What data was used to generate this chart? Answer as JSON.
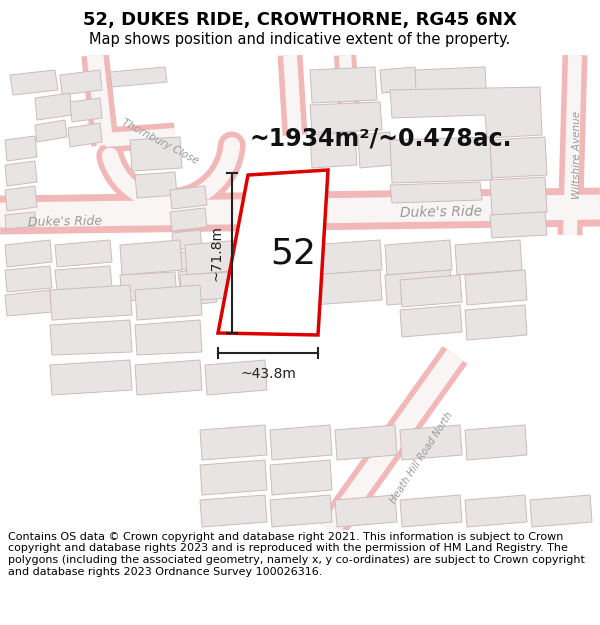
{
  "title": "52, DUKES RIDE, CROWTHORNE, RG45 6NX",
  "subtitle": "Map shows position and indicative extent of the property.",
  "footer": "Contains OS data © Crown copyright and database right 2021. This information is subject to Crown copyright and database rights 2023 and is reproduced with the permission of HM Land Registry. The polygons (including the associated geometry, namely x, y co-ordinates) are subject to Crown copyright and database rights 2023 Ordnance Survey 100026316.",
  "area_label": "~1934m²/~0.478ac.",
  "width_label": "~43.8m",
  "height_label": "~71.8m",
  "plot_number": "52",
  "map_bg": "#f7f4f4",
  "road_stroke_color": "#f2b8b8",
  "road_fill_color": "#faf5f5",
  "building_fill": "#e8e4e4",
  "building_edge": "#ccbbbb",
  "plot_line_color": "#dd0000",
  "plot_fill_color": "#ffffff",
  "dim_color": "#222222",
  "label_color": "#555555",
  "title_fontsize": 13,
  "subtitle_fontsize": 10.5,
  "footer_fontsize": 8.0,
  "area_fontsize": 17,
  "plot_num_fontsize": 26,
  "dim_fontsize": 10,
  "road_label_fontsize": 9,
  "road_label_color": "#999999"
}
